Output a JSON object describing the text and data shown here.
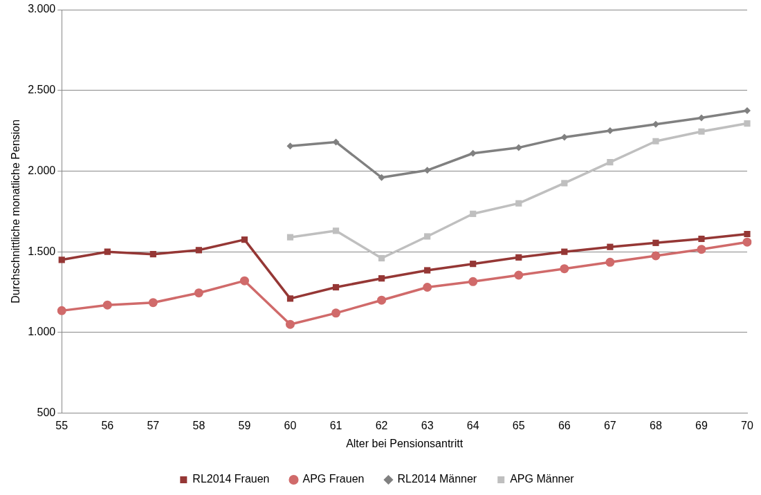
{
  "chart_data": {
    "type": "line",
    "xlabel": "Alter bei Pensionsantritt",
    "ylabel": "Durchschnittliche monatliche Pension",
    "categories": [
      "55",
      "56",
      "57",
      "58",
      "59",
      "60",
      "61",
      "62",
      "63",
      "64",
      "65",
      "66",
      "67",
      "68",
      "69",
      "70"
    ],
    "ylim": [
      500,
      3000
    ],
    "yticks": [
      {
        "value": 500,
        "label": "500"
      },
      {
        "value": 1000,
        "label": "1.000"
      },
      {
        "value": 1500,
        "label": "1.500"
      },
      {
        "value": 2000,
        "label": "2.000"
      },
      {
        "value": 2500,
        "label": "2.500"
      },
      {
        "value": 3000,
        "label": "3.000"
      }
    ],
    "grid": "y",
    "legend": "bottom",
    "series": [
      {
        "name": "RL2014 Frauen",
        "color": "#953735",
        "marker": "square",
        "values": [
          1450,
          1500,
          1485,
          1510,
          1575,
          1210,
          1280,
          1335,
          1385,
          1425,
          1465,
          1500,
          1530,
          1555,
          1580,
          1610
        ]
      },
      {
        "name": "APG Frauen",
        "color": "#d06a6a",
        "marker": "circle",
        "values": [
          1135,
          1170,
          1185,
          1245,
          1320,
          1050,
          1120,
          1200,
          1280,
          1315,
          1355,
          1395,
          1435,
          1475,
          1515,
          1560
        ]
      },
      {
        "name": "RL2014 Männer",
        "color": "#808080",
        "marker": "diamond",
        "values": [
          null,
          null,
          null,
          null,
          null,
          2155,
          2180,
          1960,
          2005,
          2110,
          2145,
          2210,
          2250,
          2290,
          2330,
          2375
        ]
      },
      {
        "name": "APG Männer",
        "color": "#bfbfbf",
        "marker": "square",
        "values": [
          null,
          null,
          null,
          null,
          null,
          1590,
          1630,
          1460,
          1595,
          1735,
          1800,
          1925,
          2055,
          2185,
          2245,
          2295
        ]
      }
    ]
  }
}
